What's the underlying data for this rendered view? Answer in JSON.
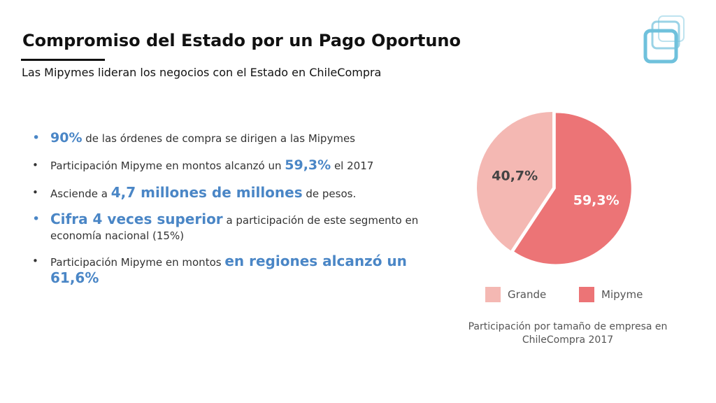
{
  "header": {
    "title": "Compromiso del Estado por un Pago Oportuno",
    "subtitle": "Las Mipymes lideran los negocios con el Estado en ChileCompra"
  },
  "bullets": [
    {
      "highlight": "90%",
      "text": " de las órdenes de compra se dirigen a las Mipymes"
    },
    {
      "before": "Participación Mipyme en montos alcanzó un ",
      "highlight": "59,3%",
      "after": " el 2017"
    },
    {
      "before": "Asciende a ",
      "highlight": "4,7 millones de millones",
      "after": " de pesos."
    },
    {
      "highlight": "Cifra 4 veces superior",
      "after": " a participación de este segmento en economía nacional (15%)"
    },
    {
      "before": "Participación Mipyme en montos ",
      "highlight": "en regiones alcanzó un 61,6%"
    }
  ],
  "bullet_glyph": "•",
  "chart_data": {
    "type": "pie",
    "categories": [
      "Grande",
      "Mipyme"
    ],
    "values": [
      40.7,
      59.3
    ],
    "data_labels": [
      "40,7%",
      "59,3%"
    ],
    "colors": [
      "#f4b8b3",
      "#ec7476"
    ],
    "label_colors": [
      "#444444",
      "#ffffff"
    ],
    "legend": [
      "Grande",
      "Mipyme"
    ],
    "legend_position": "bottom",
    "caption": "Participación por tamaño de empresa en ChileCompra 2017",
    "exploded": "Mipyme"
  },
  "colors": {
    "highlight": "#4a86c6",
    "logo": "#6fc1dc"
  }
}
